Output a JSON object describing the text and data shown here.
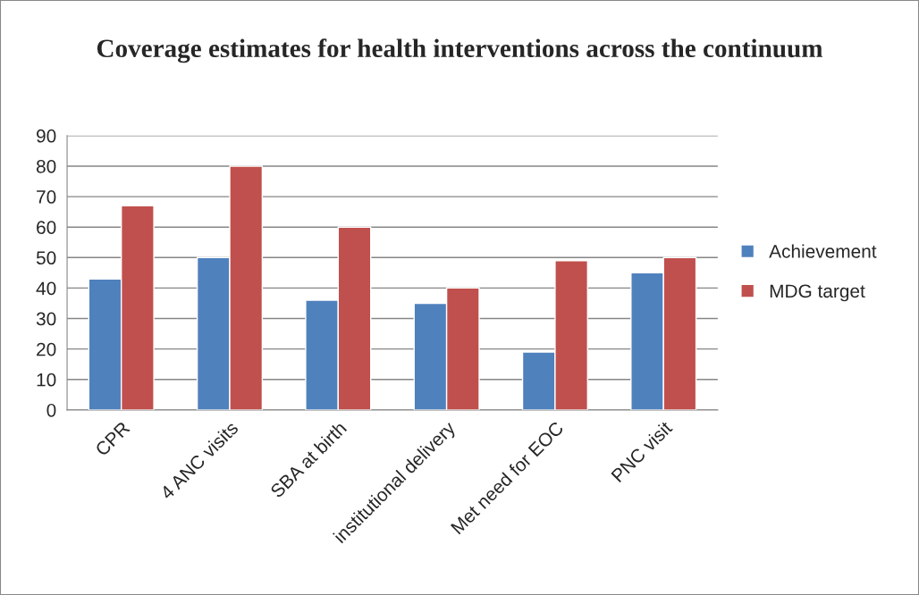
{
  "chart_data": {
    "type": "bar",
    "title": "Coverage estimates for health interventions across the continuum",
    "categories": [
      "CPR",
      "4 ANC visits",
      "SBA at birth",
      "institutional delivery",
      "Met need for EOC",
      "PNC visit"
    ],
    "series": [
      {
        "name": "Achievement",
        "color": "#4f81bd",
        "values": [
          43,
          50,
          36,
          35,
          19,
          45
        ]
      },
      {
        "name": "MDG target",
        "color": "#c0504d",
        "values": [
          67,
          80,
          60,
          40,
          49,
          50
        ]
      }
    ],
    "ylim": [
      0,
      90
    ],
    "yticks": [
      0,
      10,
      20,
      30,
      40,
      50,
      60,
      70,
      80,
      90
    ],
    "grid": "y",
    "legend": "right"
  }
}
